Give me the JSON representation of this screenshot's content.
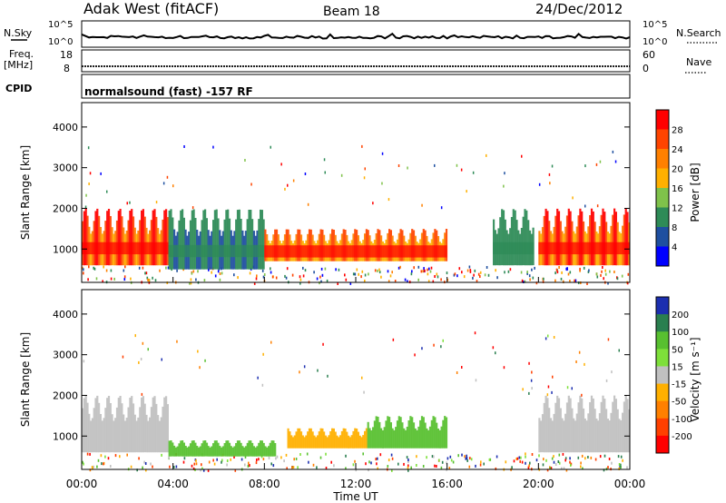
{
  "header": {
    "station": "Adak West (fitACF)",
    "beam": "Beam 18",
    "date": "24/Dec/2012"
  },
  "top_panels": {
    "nsky_label": "N.Sky",
    "nsky_ticks": [
      "10^5",
      "10^0"
    ],
    "nsearch_label": "N.Search",
    "freq_label_1": "Freq.",
    "freq_label_2": "[MHz]",
    "freq_ticks": [
      "18",
      "8"
    ],
    "nave_label": "Nave",
    "nave_ticks": [
      "60",
      "0"
    ],
    "cpid_label": "CPID",
    "cpid_text": "normalsound (fast) -157 RF"
  },
  "chart_data": [
    {
      "type": "heatmap",
      "name": "Power",
      "xlabel": "Time UT",
      "ylabel": "Slant Range [km]",
      "x_ticks": [
        "00:00",
        "04:00",
        "08:00",
        "12:00",
        "16:00",
        "20:00",
        "00:00"
      ],
      "y_ticks": [
        1000,
        2000,
        3000,
        4000
      ],
      "xlim_hours": [
        0,
        24
      ],
      "ylim": [
        180,
        4600
      ],
      "colorbar": {
        "label": "Power [dB]",
        "ticks": [
          "28",
          "24",
          "20",
          "16",
          "12",
          "8",
          "4"
        ],
        "colors": [
          "#ff0000",
          "#ff4400",
          "#ff8000",
          "#ffb000",
          "#7fc24a",
          "#2e8b57",
          "#1e4fa0",
          "#0000ff"
        ]
      },
      "echo_regions": [
        {
          "t_start": 0.0,
          "t_end": 3.8,
          "range_start": 600,
          "range_end": 2000,
          "peak_db": 28
        },
        {
          "t_start": 3.8,
          "t_end": 8.0,
          "range_start": 500,
          "range_end": 2000,
          "peak_db": 8
        },
        {
          "t_start": 8.0,
          "t_end": 16.0,
          "range_start": 700,
          "range_end": 1500,
          "peak_db": 24
        },
        {
          "t_start": 18.0,
          "t_end": 19.8,
          "range_start": 600,
          "range_end": 2000,
          "peak_db": 10
        },
        {
          "t_start": 20.0,
          "t_end": 24.0,
          "range_start": 600,
          "range_end": 2000,
          "peak_db": 28
        }
      ]
    },
    {
      "type": "heatmap",
      "name": "Velocity",
      "xlabel": "Time UT",
      "ylabel": "Slant Range [km]",
      "x_ticks": [
        "00:00",
        "04:00",
        "08:00",
        "12:00",
        "16:00",
        "20:00",
        "00:00"
      ],
      "y_ticks": [
        1000,
        2000,
        3000,
        4000
      ],
      "xlim_hours": [
        0,
        24
      ],
      "ylim": [
        180,
        4600
      ],
      "colorbar": {
        "label": "Velocity [m s⁻¹]",
        "ticks": [
          "200",
          "100",
          "50",
          "15",
          "-15",
          "-50",
          "-100",
          "-200"
        ],
        "colors": [
          "#1c2fb0",
          "#2a7f4f",
          "#58c030",
          "#7ee03a",
          "#c0c0c0",
          "#ffb000",
          "#ff8000",
          "#ff4000",
          "#ff0000"
        ]
      },
      "echo_regions": [
        {
          "t_start": 0.0,
          "t_end": 3.8,
          "range_start": 600,
          "range_end": 2000,
          "velocity": 0
        },
        {
          "t_start": 3.8,
          "t_end": 8.5,
          "range_start": 500,
          "range_end": 900,
          "velocity": 50
        },
        {
          "t_start": 9.0,
          "t_end": 12.5,
          "range_start": 700,
          "range_end": 1200,
          "velocity": -50
        },
        {
          "t_start": 12.5,
          "t_end": 16.0,
          "range_start": 700,
          "range_end": 1500,
          "velocity": 50
        },
        {
          "t_start": 20.0,
          "t_end": 24.0,
          "range_start": 600,
          "range_end": 2000,
          "velocity": 0
        }
      ]
    }
  ]
}
